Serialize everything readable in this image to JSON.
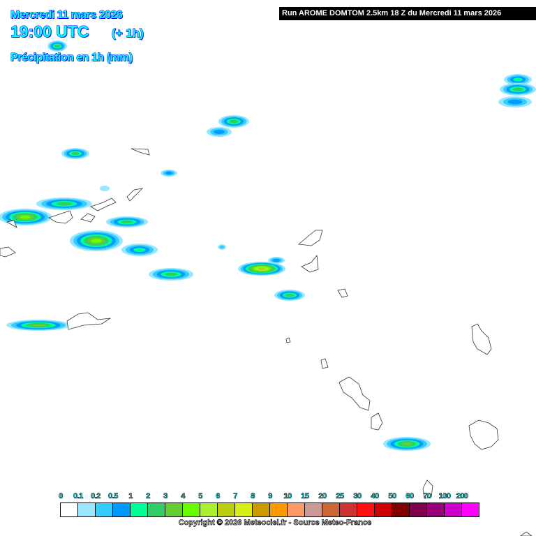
{
  "header": {
    "date": "Mercredi 11 mars 2026",
    "time": "19:00 UTC",
    "lead": "(+ 1h)",
    "parameter": "Précipitation en 1h (mm)",
    "run": "Run AROME DOMTOM 2.5km 18 Z du Mercredi 11 mars 2026"
  },
  "legend": {
    "labels": [
      "0",
      "0.1",
      "0.2",
      "0.5",
      "1",
      "2",
      "3",
      "4",
      "5",
      "6",
      "7",
      "8",
      "9",
      "10",
      "15",
      "20",
      "25",
      "30",
      "40",
      "50",
      "60",
      "70",
      "100",
      "200"
    ],
    "colors": [
      "#ffffff",
      "#99e6ff",
      "#33ccff",
      "#0099ff",
      "#00ff99",
      "#33cc66",
      "#66cc33",
      "#66ff00",
      "#a8f030",
      "#bccc10",
      "#d8ee18",
      "#cc9900",
      "#ff9900",
      "#ff9966",
      "#cc9999",
      "#cc6633",
      "#cc3333",
      "#ff1111",
      "#cc0000",
      "#800000",
      "#800050",
      "#990077",
      "#cc00cc",
      "#ff00ff"
    ]
  },
  "copyright": "Copyright © 2026 Meteociel.fr - Source Meteo-France"
}
